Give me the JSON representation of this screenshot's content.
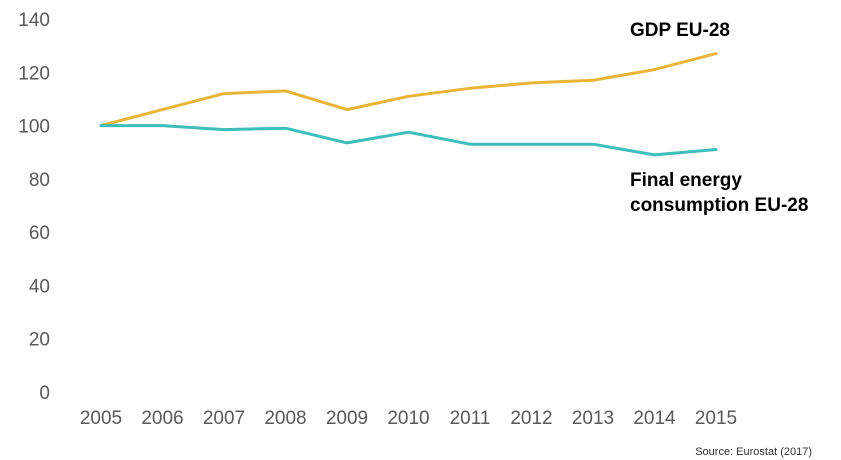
{
  "chart_data": {
    "type": "line",
    "x": [
      "2005",
      "2006",
      "2007",
      "2008",
      "2009",
      "2010",
      "2011",
      "2012",
      "2013",
      "2014",
      "2015"
    ],
    "series": [
      {
        "name": "GDP EU-28",
        "color": "#E8B538",
        "values": [
          100,
          106,
          112,
          113,
          106,
          111,
          114,
          116,
          117,
          121,
          127
        ]
      },
      {
        "name": "Final energy consumption EU-28",
        "name_lines": [
          "Final energy",
          "consumption EU-28"
        ],
        "color": "#3EBDBD",
        "values": [
          100,
          100,
          98.5,
          99,
          93.5,
          97.5,
          93,
          93,
          93,
          89,
          91
        ]
      }
    ],
    "yticks": [
      0,
      20,
      40,
      60,
      80,
      100,
      120,
      140
    ],
    "ylim": [
      0,
      140
    ],
    "grid": false,
    "source": "Source: Eurostat (2017)"
  }
}
